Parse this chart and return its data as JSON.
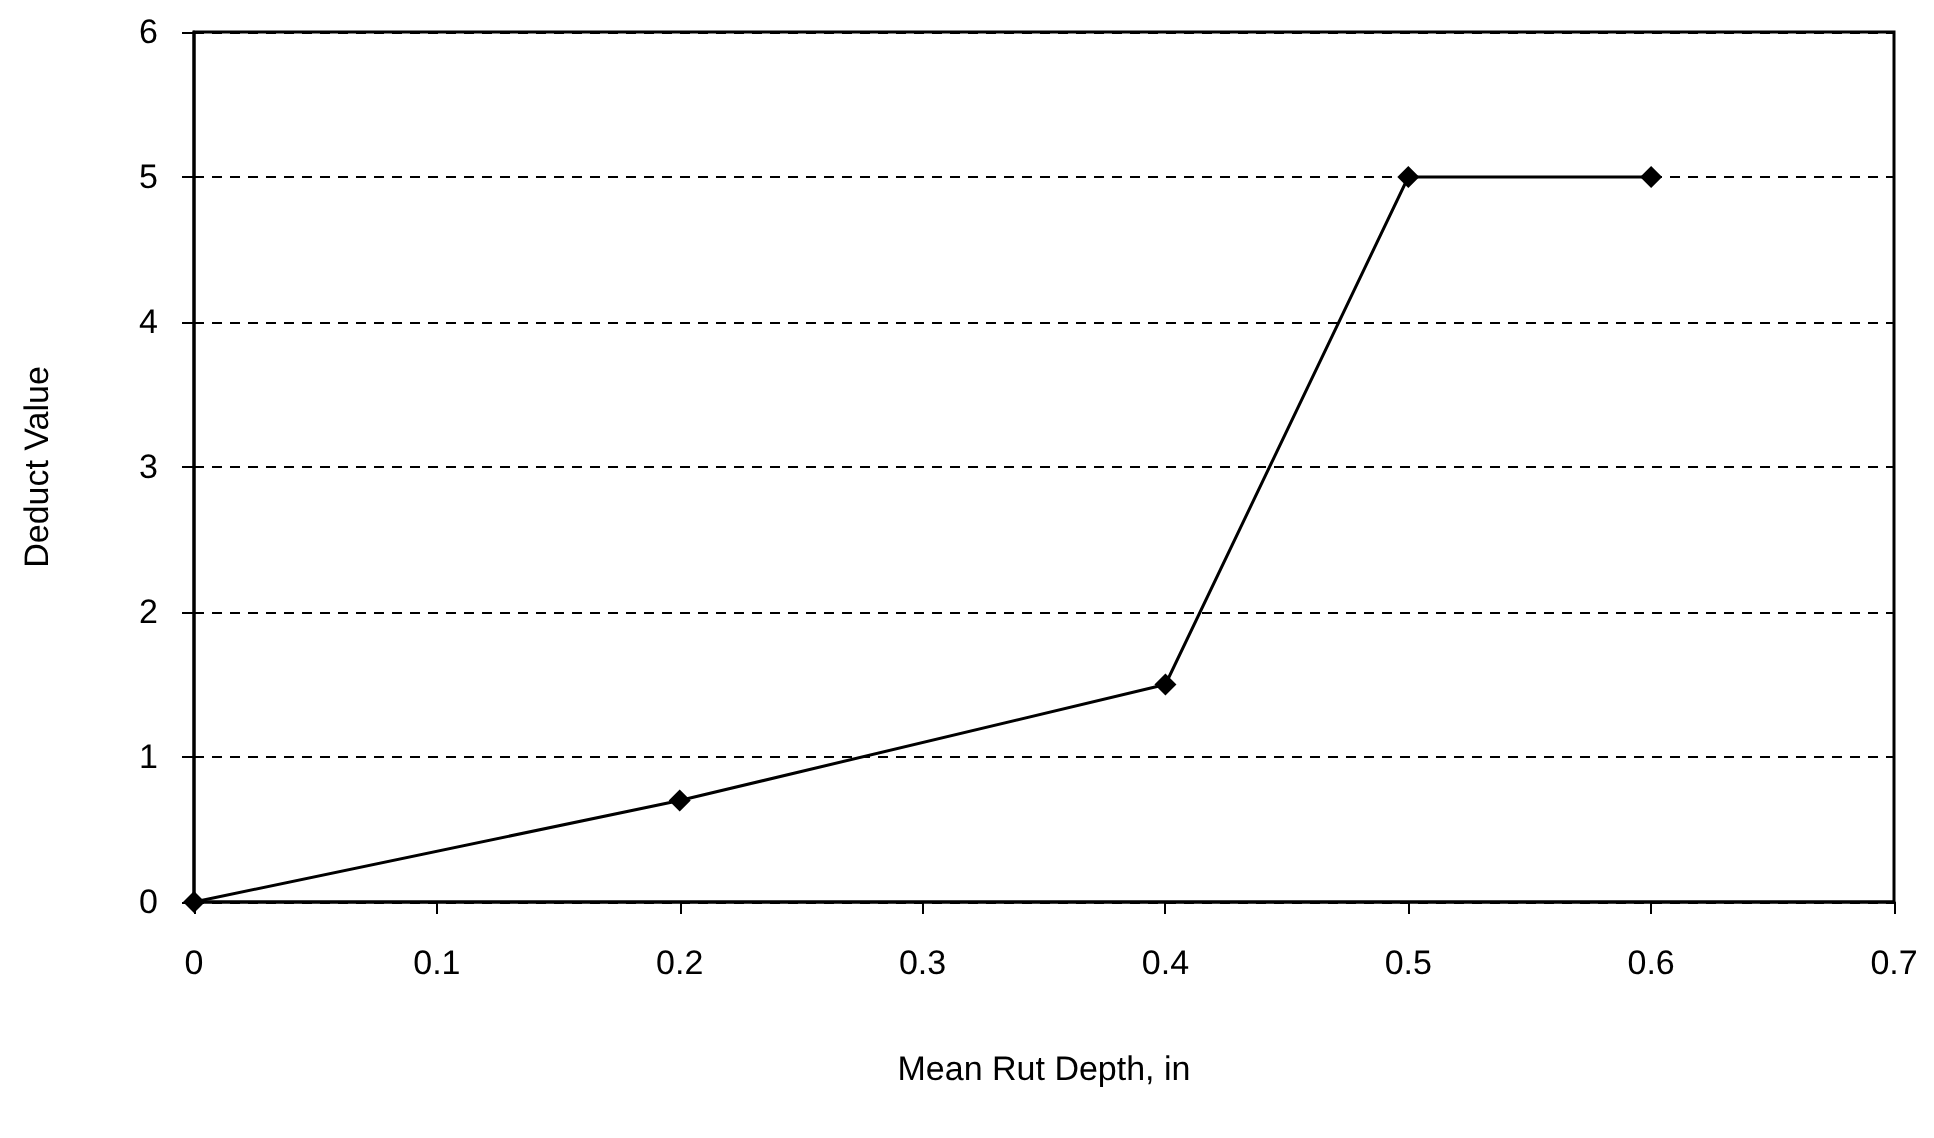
{
  "chart_data": {
    "type": "line",
    "xlabel": "Mean Rut Depth, in",
    "ylabel": "Deduct Value",
    "x": [
      0,
      0.2,
      0.4,
      0.5,
      0.6
    ],
    "series": [
      {
        "color": "#000000",
        "values": [
          0,
          0.7,
          1.5,
          5,
          5
        ]
      }
    ],
    "xlim": [
      0,
      0.7
    ],
    "xticks": [
      0,
      0.1,
      0.2,
      0.3,
      0.4,
      0.5,
      0.6,
      0.7
    ],
    "ylim": [
      0,
      6
    ],
    "yticks": [
      0,
      1,
      2,
      3,
      4,
      5,
      6
    ],
    "grid": "y",
    "marker": "diamond",
    "line_style": "solid"
  }
}
